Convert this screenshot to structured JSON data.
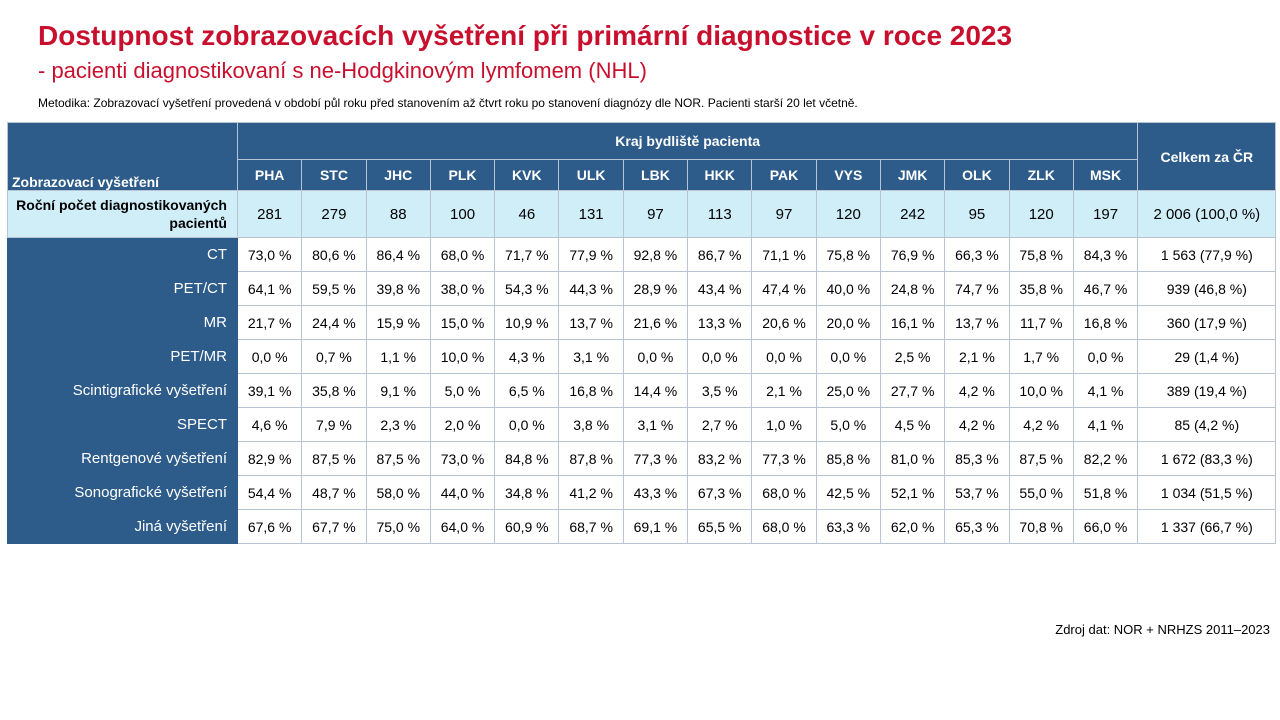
{
  "title": "Dostupnost zobrazovacích vyšetření při primární diagnostice v roce 2023",
  "subtitle": "- pacienti diagnostikovaní s ne-Hodgkinovým lymfomem (NHL)",
  "methodology": "Metodika: Zobrazovací vyšetření provedená v období půl roku před stanovením až čtvrt roku po stanovení diagnózy dle NOR. Pacienti starší 20 let včetně.",
  "source": "Zdroj dat: NOR + NRHZS 2011–2023",
  "table": {
    "header_label": "Zobrazovací vyšetření",
    "group_label": "Kraj bydliště pacienta",
    "total_label": "Celkem za ČR",
    "regions": [
      "PHA",
      "STC",
      "JHC",
      "PLK",
      "KVK",
      "ULK",
      "LBK",
      "HKK",
      "PAK",
      "VYS",
      "JMK",
      "OLK",
      "ZLK",
      "MSK"
    ],
    "count_row": {
      "label": "Roční počet diagnostikovaných pacientů",
      "values": [
        "281",
        "279",
        "88",
        "100",
        "46",
        "131",
        "97",
        "113",
        "97",
        "120",
        "242",
        "95",
        "120",
        "197"
      ],
      "total": "2 006 (100,0 %)"
    },
    "rows": [
      {
        "label": "CT",
        "values": [
          "73,0 %",
          "80,6 %",
          "86,4 %",
          "68,0 %",
          "71,7 %",
          "77,9 %",
          "92,8 %",
          "86,7 %",
          "71,1 %",
          "75,8 %",
          "76,9 %",
          "66,3 %",
          "75,8 %",
          "84,3 %"
        ],
        "total": "1 563 (77,9 %)"
      },
      {
        "label": "PET/CT",
        "values": [
          "64,1 %",
          "59,5 %",
          "39,8 %",
          "38,0 %",
          "54,3 %",
          "44,3 %",
          "28,9 %",
          "43,4 %",
          "47,4 %",
          "40,0 %",
          "24,8 %",
          "74,7 %",
          "35,8 %",
          "46,7 %"
        ],
        "total": "939 (46,8 %)"
      },
      {
        "label": "MR",
        "values": [
          "21,7 %",
          "24,4 %",
          "15,9 %",
          "15,0 %",
          "10,9 %",
          "13,7 %",
          "21,6 %",
          "13,3 %",
          "20,6 %",
          "20,0 %",
          "16,1 %",
          "13,7 %",
          "11,7 %",
          "16,8 %"
        ],
        "total": "360 (17,9 %)"
      },
      {
        "label": "PET/MR",
        "values": [
          "0,0 %",
          "0,7 %",
          "1,1 %",
          "10,0 %",
          "4,3 %",
          "3,1 %",
          "0,0 %",
          "0,0 %",
          "0,0 %",
          "0,0 %",
          "2,5 %",
          "2,1 %",
          "1,7 %",
          "0,0 %"
        ],
        "total": "29 (1,4 %)"
      },
      {
        "label": "Scintigrafické vyšetření",
        "values": [
          "39,1 %",
          "35,8 %",
          "9,1 %",
          "5,0 %",
          "6,5 %",
          "16,8 %",
          "14,4 %",
          "3,5 %",
          "2,1 %",
          "25,0 %",
          "27,7 %",
          "4,2 %",
          "10,0 %",
          "4,1 %"
        ],
        "total": "389 (19,4 %)"
      },
      {
        "label": "SPECT",
        "values": [
          "4,6 %",
          "7,9 %",
          "2,3 %",
          "2,0 %",
          "0,0 %",
          "3,8 %",
          "3,1 %",
          "2,7 %",
          "1,0 %",
          "5,0 %",
          "4,5 %",
          "4,2 %",
          "4,2 %",
          "4,1 %"
        ],
        "total": "85 (4,2 %)"
      },
      {
        "label": "Rentgenové vyšetření",
        "values": [
          "82,9 %",
          "87,5 %",
          "87,5 %",
          "73,0 %",
          "84,8 %",
          "87,8 %",
          "77,3 %",
          "83,2 %",
          "77,3 %",
          "85,8 %",
          "81,0 %",
          "85,3 %",
          "87,5 %",
          "82,2 %"
        ],
        "total": "1 672 (83,3 %)"
      },
      {
        "label": "Sonografické vyšetření",
        "values": [
          "54,4 %",
          "48,7 %",
          "58,0 %",
          "44,0 %",
          "34,8 %",
          "41,2 %",
          "43,3 %",
          "67,3 %",
          "68,0 %",
          "42,5 %",
          "52,1 %",
          "53,7 %",
          "55,0 %",
          "51,8 %"
        ],
        "total": "1 034 (51,5 %)"
      },
      {
        "label": "Jiná vyšetření",
        "values": [
          "67,6 %",
          "67,7 %",
          "75,0 %",
          "64,0 %",
          "60,9 %",
          "68,7 %",
          "69,1 %",
          "65,5 %",
          "68,0 %",
          "63,3 %",
          "62,0 %",
          "65,3 %",
          "70,8 %",
          "66,0 %"
        ],
        "total": "1 337 (66,7 %)"
      }
    ]
  }
}
